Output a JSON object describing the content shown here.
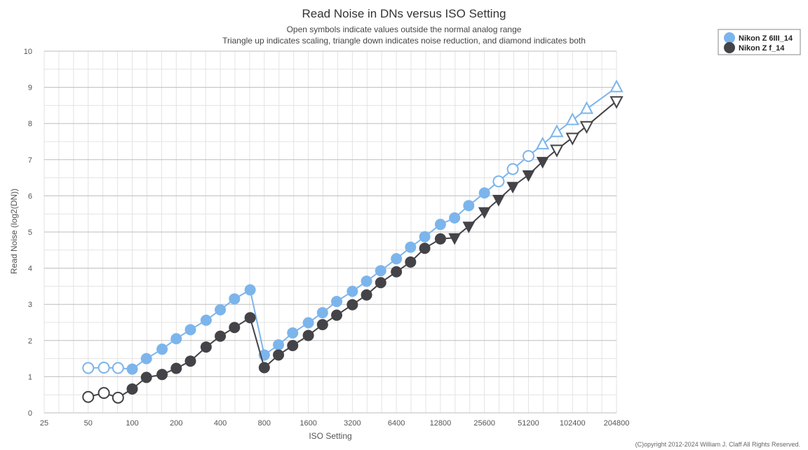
{
  "chart_data": {
    "type": "line",
    "title": "Read Noise in DNs versus ISO Setting",
    "subtitle_lines": [
      "Open symbols indicate values outside the normal analog range",
      "Triangle up indicates scaling, triangle down indicates noise reduction, and diamond indicates both"
    ],
    "xlabel": "ISO Setting",
    "ylabel": "Read Noise (log2(DN))",
    "x_scale": "log2",
    "xlim": [
      25,
      204800
    ],
    "ylim": [
      0,
      10
    ],
    "x_ticks": [
      "25",
      "50",
      "100",
      "200",
      "400",
      "800",
      "1600",
      "3200",
      "6400",
      "12800",
      "25600",
      "51200",
      "102400",
      "204800"
    ],
    "y_ticks": [
      "0",
      "1",
      "2",
      "3",
      "4",
      "5",
      "6",
      "7",
      "8",
      "9",
      "10"
    ],
    "grid": true,
    "legend_position": "top-right",
    "copyright": "(C)opyright 2012-2024 William J. Claff All Rights Reserved.",
    "series": [
      {
        "name": "Nikon Z 6III_14",
        "color": "#7cb5ec",
        "points": [
          {
            "x": 50,
            "y": 1.24,
            "m": "open-circle"
          },
          {
            "x": 64,
            "y": 1.25,
            "m": "open-circle"
          },
          {
            "x": 80,
            "y": 1.24,
            "m": "open-circle"
          },
          {
            "x": 100,
            "y": 1.21,
            "m": "circle"
          },
          {
            "x": 125,
            "y": 1.5,
            "m": "circle"
          },
          {
            "x": 160,
            "y": 1.76,
            "m": "circle"
          },
          {
            "x": 200,
            "y": 2.05,
            "m": "circle"
          },
          {
            "x": 250,
            "y": 2.3,
            "m": "circle"
          },
          {
            "x": 320,
            "y": 2.56,
            "m": "circle"
          },
          {
            "x": 400,
            "y": 2.85,
            "m": "circle"
          },
          {
            "x": 500,
            "y": 3.15,
            "m": "circle"
          },
          {
            "x": 640,
            "y": 3.4,
            "m": "circle"
          },
          {
            "x": 800,
            "y": 1.6,
            "m": "circle"
          },
          {
            "x": 1000,
            "y": 1.88,
            "m": "circle"
          },
          {
            "x": 1250,
            "y": 2.21,
            "m": "circle"
          },
          {
            "x": 1600,
            "y": 2.49,
            "m": "circle"
          },
          {
            "x": 2000,
            "y": 2.77,
            "m": "circle"
          },
          {
            "x": 2500,
            "y": 3.08,
            "m": "circle"
          },
          {
            "x": 3200,
            "y": 3.36,
            "m": "circle"
          },
          {
            "x": 4000,
            "y": 3.64,
            "m": "circle"
          },
          {
            "x": 5000,
            "y": 3.93,
            "m": "circle"
          },
          {
            "x": 6400,
            "y": 4.26,
            "m": "circle"
          },
          {
            "x": 8000,
            "y": 4.58,
            "m": "circle"
          },
          {
            "x": 10000,
            "y": 4.87,
            "m": "circle"
          },
          {
            "x": 12800,
            "y": 5.21,
            "m": "circle"
          },
          {
            "x": 16000,
            "y": 5.39,
            "m": "circle"
          },
          {
            "x": 20000,
            "y": 5.73,
            "m": "circle"
          },
          {
            "x": 25600,
            "y": 6.08,
            "m": "circle"
          },
          {
            "x": 32000,
            "y": 6.4,
            "m": "open-circle"
          },
          {
            "x": 40000,
            "y": 6.74,
            "m": "open-circle"
          },
          {
            "x": 51200,
            "y": 7.1,
            "m": "open-circle"
          },
          {
            "x": 64000,
            "y": 7.42,
            "m": "open-triangle-up"
          },
          {
            "x": 80000,
            "y": 7.76,
            "m": "open-triangle-up"
          },
          {
            "x": 102400,
            "y": 8.09,
            "m": "open-triangle-up"
          },
          {
            "x": 128000,
            "y": 8.4,
            "m": "open-triangle-up"
          },
          {
            "x": 204800,
            "y": 9.0,
            "m": "open-triangle-up"
          }
        ]
      },
      {
        "name": "Nikon Z f_14",
        "color": "#434348",
        "points": [
          {
            "x": 50,
            "y": 0.44,
            "m": "open-circle"
          },
          {
            "x": 64,
            "y": 0.55,
            "m": "open-circle"
          },
          {
            "x": 80,
            "y": 0.42,
            "m": "open-circle"
          },
          {
            "x": 100,
            "y": 0.66,
            "m": "circle"
          },
          {
            "x": 125,
            "y": 0.98,
            "m": "circle"
          },
          {
            "x": 160,
            "y": 1.06,
            "m": "circle"
          },
          {
            "x": 200,
            "y": 1.23,
            "m": "circle"
          },
          {
            "x": 250,
            "y": 1.43,
            "m": "circle"
          },
          {
            "x": 320,
            "y": 1.82,
            "m": "circle"
          },
          {
            "x": 400,
            "y": 2.12,
            "m": "circle"
          },
          {
            "x": 500,
            "y": 2.36,
            "m": "circle"
          },
          {
            "x": 640,
            "y": 2.63,
            "m": "circle"
          },
          {
            "x": 800,
            "y": 1.25,
            "m": "circle"
          },
          {
            "x": 1000,
            "y": 1.6,
            "m": "circle"
          },
          {
            "x": 1250,
            "y": 1.86,
            "m": "circle"
          },
          {
            "x": 1600,
            "y": 2.14,
            "m": "circle"
          },
          {
            "x": 2000,
            "y": 2.44,
            "m": "circle"
          },
          {
            "x": 2500,
            "y": 2.7,
            "m": "circle"
          },
          {
            "x": 3200,
            "y": 2.99,
            "m": "circle"
          },
          {
            "x": 4000,
            "y": 3.26,
            "m": "circle"
          },
          {
            "x": 5000,
            "y": 3.6,
            "m": "circle"
          },
          {
            "x": 6400,
            "y": 3.9,
            "m": "circle"
          },
          {
            "x": 8000,
            "y": 4.17,
            "m": "circle"
          },
          {
            "x": 10000,
            "y": 4.55,
            "m": "circle"
          },
          {
            "x": 12800,
            "y": 4.81,
            "m": "circle"
          },
          {
            "x": 16000,
            "y": 4.84,
            "m": "triangle-down"
          },
          {
            "x": 20000,
            "y": 5.16,
            "m": "triangle-down"
          },
          {
            "x": 25600,
            "y": 5.56,
            "m": "triangle-down"
          },
          {
            "x": 32000,
            "y": 5.9,
            "m": "triangle-down"
          },
          {
            "x": 40000,
            "y": 6.26,
            "m": "triangle-down"
          },
          {
            "x": 51200,
            "y": 6.58,
            "m": "triangle-down"
          },
          {
            "x": 64000,
            "y": 6.95,
            "m": "triangle-down"
          },
          {
            "x": 80000,
            "y": 7.28,
            "m": "open-triangle-down"
          },
          {
            "x": 102400,
            "y": 7.61,
            "m": "open-triangle-down"
          },
          {
            "x": 128000,
            "y": 7.93,
            "m": "open-triangle-down"
          },
          {
            "x": 204800,
            "y": 8.62,
            "m": "open-triangle-down"
          }
        ]
      }
    ]
  }
}
